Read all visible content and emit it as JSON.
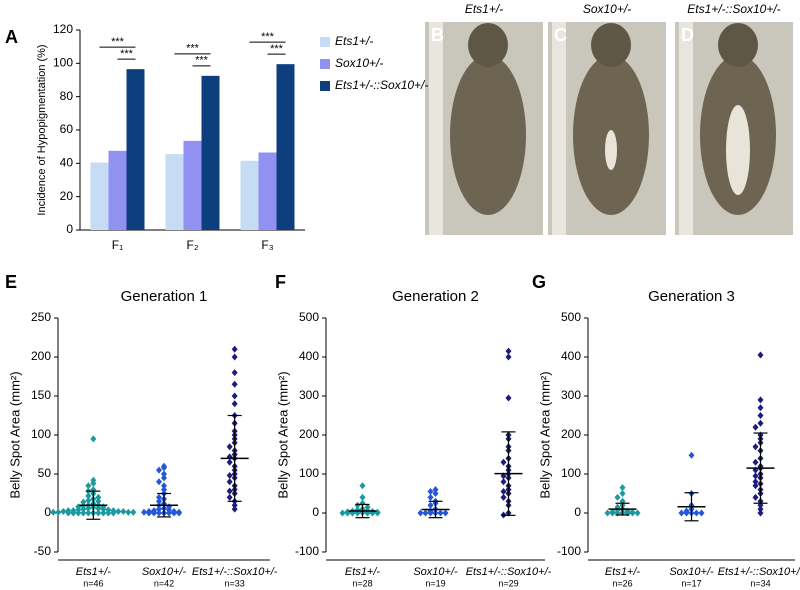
{
  "chart_data": [
    {
      "type": "bar",
      "panel": "A",
      "ylabel": "Incidence of Hypopigmentation (%)",
      "categories": [
        "F₁",
        "F₂",
        "F₃"
      ],
      "series": [
        {
          "name": "Ets1+/-",
          "color": "#c6dbf4",
          "values": [
            40.5,
            45.5,
            41.5
          ]
        },
        {
          "name": "Sox10+/-",
          "color": "#9191f2",
          "values": [
            47.5,
            53.5,
            46.5
          ]
        },
        {
          "name": "Ets1+/-::Sox10+/-",
          "color": "#0d3f7e",
          "values": [
            96.5,
            92.5,
            99.5
          ]
        }
      ],
      "annotations": [
        "***",
        "***",
        "***",
        "***",
        "***",
        "***"
      ],
      "ylim": [
        0,
        120
      ],
      "yticks": [
        0,
        20,
        40,
        60,
        80,
        100,
        120
      ]
    },
    {
      "type": "dot",
      "panel": "E",
      "title": "Generation 1",
      "ylabel": "Belly Spot Area (mm²)",
      "ylim": [
        -50,
        250
      ],
      "yticks": [
        -50,
        0,
        50,
        100,
        150,
        200,
        250
      ],
      "groups": [
        {
          "name": "Ets1+/-",
          "n": "n=46",
          "color": "#1b9a9d",
          "mean": 10,
          "sd": 18,
          "values": [
            95,
            42,
            38,
            35,
            30,
            28,
            25,
            22,
            20,
            18,
            16,
            15,
            14,
            12,
            10,
            10,
            9,
            8,
            8,
            7,
            6,
            6,
            5,
            5,
            4,
            4,
            3,
            3,
            3,
            2,
            2,
            2,
            1,
            1,
            1,
            1,
            0,
            0,
            0,
            0,
            0,
            0,
            0,
            0,
            0,
            0
          ]
        },
        {
          "name": "Sox10+/-",
          "n": "n=42",
          "color": "#2357d6",
          "mean": 10,
          "sd": 15,
          "values": [
            60,
            58,
            55,
            50,
            45,
            40,
            35,
            30,
            25,
            20,
            18,
            15,
            12,
            10,
            8,
            6,
            5,
            4,
            3,
            2,
            2,
            1,
            1,
            0,
            0,
            0,
            0,
            0,
            0,
            0
          ]
        },
        {
          "name": "Ets1+/-::Sox10+/-",
          "n": "n=33",
          "color": "#1c1c7c",
          "mean": 70,
          "sd": 55,
          "values": [
            210,
            200,
            180,
            165,
            150,
            140,
            125,
            115,
            105,
            100,
            95,
            90,
            85,
            80,
            75,
            72,
            70,
            65,
            60,
            55,
            50,
            48,
            45,
            40,
            35,
            30,
            28,
            25,
            20,
            15,
            10,
            5
          ]
        }
      ]
    },
    {
      "type": "dot",
      "panel": "F",
      "title": "Generation 2",
      "ylabel": "Belly Spot Area (mm²)",
      "ylim": [
        -100,
        500
      ],
      "yticks": [
        -100,
        0,
        100,
        200,
        300,
        400,
        500
      ],
      "groups": [
        {
          "name": "Ets1+/-",
          "n": "n=28",
          "color": "#1b9a9d",
          "mean": 5,
          "sd": 17,
          "values": [
            70,
            40,
            25,
            20,
            15,
            10,
            8,
            6,
            5,
            4,
            3,
            2,
            1,
            0,
            0,
            0,
            0,
            0,
            0,
            0
          ]
        },
        {
          "name": "Sox10+/-",
          "n": "n=19",
          "color": "#2357d6",
          "mean": 9,
          "sd": 21,
          "values": [
            60,
            55,
            50,
            40,
            30,
            25,
            20,
            10,
            5,
            0,
            0,
            0,
            0,
            0,
            0
          ]
        },
        {
          "name": "Ets1+/-::Sox10+/-",
          "n": "n=29",
          "color": "#1c1c7c",
          "mean": 101,
          "sd": 107,
          "values": [
            415,
            400,
            295,
            200,
            190,
            170,
            160,
            140,
            130,
            120,
            110,
            100,
            95,
            90,
            80,
            70,
            60,
            55,
            50,
            40,
            30,
            20,
            0,
            -5
          ]
        }
      ]
    },
    {
      "type": "dot",
      "panel": "G",
      "title": "Generation 3",
      "ylabel": "Belly Spot Area (mm²)",
      "ylim": [
        -100,
        500
      ],
      "yticks": [
        -100,
        0,
        100,
        200,
        300,
        400,
        500
      ],
      "groups": [
        {
          "name": "Ets1+/-",
          "n": "n=26",
          "color": "#1b9a9d",
          "mean": 10,
          "sd": 15,
          "values": [
            65,
            50,
            40,
            30,
            20,
            15,
            10,
            8,
            5,
            3,
            2,
            1,
            0,
            0,
            0,
            0,
            0,
            0
          ]
        },
        {
          "name": "Sox10+/-",
          "n": "n=17",
          "color": "#2357d6",
          "mean": 16,
          "sd": 36,
          "values": [
            148,
            50,
            20,
            10,
            5,
            0,
            0,
            0,
            0,
            0
          ]
        },
        {
          "name": "Ets1+/-::Sox10+/-",
          "n": "n=34",
          "color": "#1c1c7c",
          "mean": 115,
          "sd": 90,
          "values": [
            405,
            290,
            270,
            250,
            230,
            220,
            200,
            190,
            180,
            170,
            160,
            140,
            130,
            120,
            115,
            110,
            100,
            95,
            90,
            80,
            75,
            70,
            60,
            50,
            40,
            30,
            20,
            10,
            0
          ]
        }
      ]
    }
  ],
  "photos": [
    {
      "panel": "B",
      "caption": "Ets1+/-"
    },
    {
      "panel": "C",
      "caption": "Sox10+/-"
    },
    {
      "panel": "D",
      "caption": "Ets1+/-::Sox10+/-"
    }
  ]
}
